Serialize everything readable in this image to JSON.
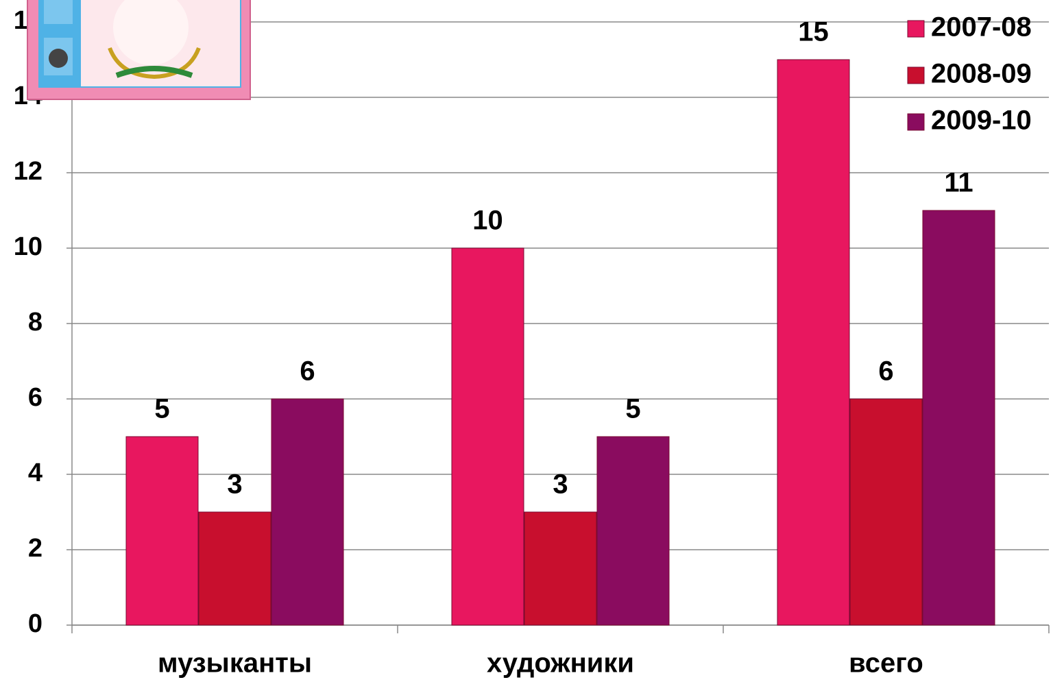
{
  "chart_data": {
    "type": "bar",
    "categories": [
      "музыканты",
      "художники",
      "всего"
    ],
    "series": [
      {
        "name": "2007-08",
        "color": "#e8175f",
        "values": [
          5,
          10,
          15
        ]
      },
      {
        "name": "2008-09",
        "color": "#c80f2e",
        "values": [
          3,
          3,
          6
        ]
      },
      {
        "name": "2009-10",
        "color": "#8a0c5f",
        "values": [
          6,
          5,
          11
        ]
      }
    ],
    "ylim": [
      0,
      16
    ],
    "yticks": [
      0,
      2,
      4,
      6,
      8,
      10,
      12,
      14,
      16
    ],
    "grid": true,
    "legend": "top-right"
  }
}
